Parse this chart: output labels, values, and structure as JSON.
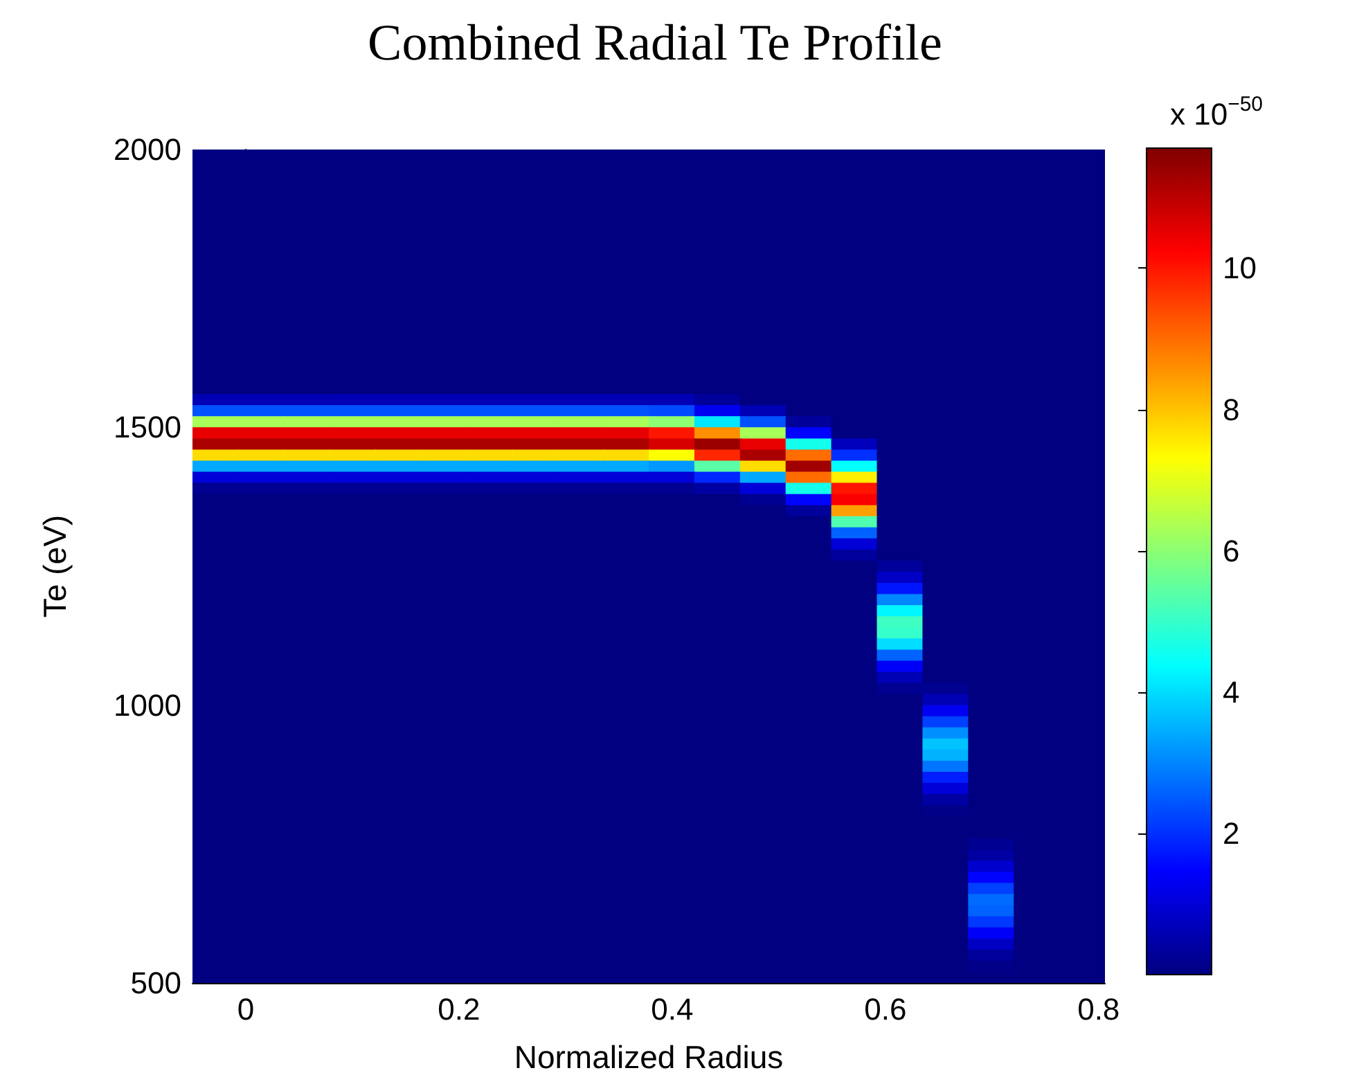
{
  "chart_data": {
    "type": "heatmap",
    "title": "Combined Radial Te Profile",
    "xlabel": "Normalized Radius",
    "ylabel": "Te (eV)",
    "clabel": "x 10$^{−50}$",
    "xlim": [
      -0.05,
      0.806
    ],
    "xticks": [
      0,
      0.2,
      0.4,
      0.6,
      0.8
    ],
    "ylim": [
      500,
      2000
    ],
    "yticks": [
      500,
      1000,
      1500,
      2000
    ],
    "clim": [
      0,
      11.7
    ],
    "cticks": [
      2,
      4,
      6,
      8,
      10
    ],
    "x": [
      -0.0286,
      0.0142,
      0.057,
      0.0998,
      0.1426,
      0.1854,
      0.2282,
      0.271,
      0.3138,
      0.3566,
      0.3994,
      0.4422,
      0.485,
      0.5278,
      0.5706,
      0.6134,
      0.6562,
      0.699,
      0.7418,
      0.7846
    ],
    "y": [
      1990,
      1970,
      1950,
      1930,
      1910,
      1890,
      1870,
      1850,
      1830,
      1810,
      1790,
      1770,
      1750,
      1730,
      1710,
      1690,
      1670,
      1650,
      1630,
      1610,
      1590,
      1570,
      1550,
      1530,
      1510,
      1490,
      1470,
      1450,
      1430,
      1410,
      1390,
      1370,
      1350,
      1330,
      1310,
      1290,
      1270,
      1250,
      1230,
      1210,
      1190,
      1170,
      1150,
      1130,
      1110,
      1090,
      1070,
      1050,
      1030,
      1010,
      990,
      970,
      950,
      930,
      910,
      890,
      870,
      850,
      830,
      810,
      790,
      770,
      750,
      730,
      710,
      690,
      670,
      650,
      630,
      610,
      590,
      570,
      550,
      530,
      510
    ],
    "cells": [
      [
        0,
        0,
        0,
        0,
        0,
        0,
        0,
        0,
        0,
        0,
        0,
        0,
        0,
        0,
        0,
        0,
        0,
        0,
        0,
        0
      ],
      [
        0,
        0,
        0,
        0,
        0,
        0,
        0,
        0,
        0,
        0,
        0,
        0,
        0,
        0,
        0,
        0,
        0,
        0,
        0,
        0
      ],
      [
        0,
        0,
        0,
        0,
        0,
        0,
        0,
        0,
        0,
        0,
        0,
        0,
        0,
        0,
        0,
        0,
        0,
        0,
        0,
        0
      ],
      [
        0,
        0,
        0,
        0,
        0,
        0,
        0,
        0,
        0,
        0,
        0,
        0,
        0,
        0,
        0,
        0,
        0,
        0,
        0,
        0
      ],
      [
        0,
        0,
        0,
        0,
        0,
        0,
        0,
        0,
        0,
        0,
        0,
        0,
        0,
        0,
        0,
        0,
        0,
        0,
        0,
        0
      ],
      [
        0,
        0,
        0,
        0,
        0,
        0,
        0,
        0,
        0,
        0,
        0,
        0,
        0,
        0,
        0,
        0,
        0,
        0,
        0,
        0
      ],
      [
        0,
        0,
        0,
        0,
        0,
        0,
        0,
        0,
        0,
        0,
        0,
        0,
        0,
        0,
        0,
        0,
        0,
        0,
        0,
        0
      ],
      [
        0,
        0,
        0,
        0,
        0,
        0,
        0,
        0,
        0,
        0,
        0,
        0,
        0,
        0,
        0,
        0,
        0,
        0,
        0,
        0
      ],
      [
        0,
        0,
        0,
        0,
        0,
        0,
        0,
        0,
        0,
        0,
        0,
        0,
        0,
        0,
        0,
        0,
        0,
        0,
        0,
        0
      ],
      [
        0,
        0,
        0,
        0,
        0,
        0,
        0,
        0,
        0,
        0,
        0,
        0,
        0,
        0,
        0,
        0,
        0,
        0,
        0,
        0
      ],
      [
        0,
        0,
        0,
        0,
        0,
        0,
        0,
        0,
        0,
        0,
        0,
        0,
        0,
        0,
        0,
        0,
        0,
        0,
        0,
        0
      ],
      [
        0,
        0,
        0,
        0,
        0,
        0,
        0,
        0,
        0,
        0,
        0,
        0,
        0,
        0,
        0,
        0,
        0,
        0,
        0,
        0
      ],
      [
        0,
        0,
        0,
        0,
        0,
        0,
        0,
        0,
        0,
        0,
        0,
        0,
        0,
        0,
        0,
        0,
        0,
        0,
        0,
        0
      ],
      [
        0,
        0,
        0,
        0,
        0,
        0,
        0,
        0,
        0,
        0,
        0,
        0,
        0,
        0,
        0,
        0,
        0,
        0,
        0,
        0
      ],
      [
        0,
        0,
        0,
        0,
        0,
        0,
        0,
        0,
        0,
        0,
        0,
        0,
        0,
        0,
        0,
        0,
        0,
        0,
        0,
        0
      ],
      [
        0,
        0,
        0,
        0,
        0,
        0,
        0,
        0,
        0,
        0,
        0,
        0,
        0,
        0,
        0,
        0,
        0,
        0,
        0,
        0
      ],
      [
        0,
        0,
        0,
        0,
        0,
        0,
        0,
        0,
        0,
        0,
        0,
        0,
        0,
        0,
        0,
        0,
        0,
        0,
        0,
        0
      ],
      [
        0,
        0,
        0,
        0,
        0,
        0,
        0,
        0,
        0,
        0,
        0,
        0,
        0,
        0,
        0,
        0,
        0,
        0,
        0,
        0
      ],
      [
        0,
        0,
        0,
        0,
        0,
        0,
        0,
        0,
        0,
        0,
        0,
        0,
        0,
        0,
        0,
        0,
        0,
        0,
        0,
        0
      ],
      [
        0,
        0,
        0,
        0,
        0,
        0,
        0,
        0,
        0,
        0,
        0,
        0,
        0,
        0,
        0,
        0,
        0,
        0,
        0,
        0
      ],
      [
        0,
        0,
        0,
        0,
        0,
        0,
        0,
        0,
        0,
        0,
        0,
        0,
        0,
        0,
        0,
        0,
        0,
        0,
        0,
        0
      ],
      [
        0,
        0,
        0,
        0,
        0,
        0,
        0,
        0,
        0,
        0,
        0,
        0,
        0,
        0,
        0,
        0,
        0,
        0,
        0,
        0
      ],
      [
        0.6,
        0.6,
        0.6,
        0.6,
        0.6,
        0.6,
        0.6,
        0.6,
        0.6,
        0.6,
        0.6,
        0.3,
        0,
        0,
        0,
        0,
        0,
        0,
        0,
        0
      ],
      [
        2.4,
        2.4,
        2.4,
        2.4,
        2.4,
        2.4,
        2.4,
        2.4,
        2.4,
        2.4,
        2.3,
        1.3,
        0.6,
        0,
        0,
        0,
        0,
        0,
        0,
        0
      ],
      [
        6.3,
        6.3,
        6.3,
        6.3,
        6.3,
        6.3,
        6.3,
        6.3,
        6.3,
        6.3,
        6.0,
        4.1,
        2.4,
        0.3,
        0,
        0,
        0,
        0,
        0,
        0
      ],
      [
        10.5,
        10.5,
        10.5,
        10.5,
        10.5,
        10.5,
        10.5,
        10.5,
        10.5,
        10.5,
        10.0,
        8.6,
        6.3,
        1.5,
        0,
        0,
        0,
        0,
        0,
        0
      ],
      [
        11.2,
        11.2,
        11.2,
        11.2,
        11.2,
        11.2,
        11.2,
        11.2,
        11.2,
        11.2,
        10.7,
        11.4,
        10.5,
        4.6,
        0.7,
        0,
        0,
        0,
        0,
        0
      ],
      [
        7.7,
        7.7,
        7.7,
        7.7,
        7.7,
        7.7,
        7.7,
        7.7,
        7.7,
        7.7,
        7.3,
        9.8,
        11.2,
        9.0,
        2.0,
        0,
        0,
        0,
        0,
        0
      ],
      [
        3.4,
        3.4,
        3.4,
        3.4,
        3.4,
        3.4,
        3.4,
        3.4,
        3.4,
        3.4,
        3.2,
        5.4,
        7.7,
        11.3,
        4.4,
        0,
        0,
        0,
        0,
        0
      ],
      [
        1.0,
        1.0,
        1.0,
        1.0,
        1.0,
        1.0,
        1.0,
        1.0,
        1.0,
        1.0,
        1.0,
        1.9,
        3.4,
        9.0,
        7.5,
        0,
        0,
        0,
        0,
        0
      ],
      [
        0.2,
        0.2,
        0.2,
        0.2,
        0.2,
        0.2,
        0.2,
        0.2,
        0.2,
        0.2,
        0.2,
        0.4,
        1.0,
        4.6,
        10.0,
        0,
        0,
        0,
        0,
        0
      ],
      [
        0,
        0,
        0,
        0,
        0,
        0,
        0,
        0,
        0,
        0,
        0,
        0,
        0.2,
        1.5,
        10.3,
        0,
        0,
        0,
        0,
        0
      ],
      [
        0,
        0,
        0,
        0,
        0,
        0,
        0,
        0,
        0,
        0,
        0,
        0,
        0,
        0.3,
        8.4,
        0,
        0,
        0,
        0,
        0
      ],
      [
        0,
        0,
        0,
        0,
        0,
        0,
        0,
        0,
        0,
        0,
        0,
        0,
        0,
        0,
        5.3,
        0,
        0,
        0,
        0,
        0
      ],
      [
        0,
        0,
        0,
        0,
        0,
        0,
        0,
        0,
        0,
        0,
        0,
        0,
        0,
        0,
        2.6,
        0,
        0,
        0,
        0,
        0
      ],
      [
        0,
        0,
        0,
        0,
        0,
        0,
        0,
        0,
        0,
        0,
        0,
        0,
        0,
        0,
        1.0,
        0,
        0,
        0,
        0,
        0
      ],
      [
        0,
        0,
        0,
        0,
        0,
        0,
        0,
        0,
        0,
        0,
        0,
        0,
        0,
        0,
        0.3,
        0,
        0,
        0,
        0,
        0
      ],
      [
        0,
        0,
        0,
        0,
        0,
        0,
        0,
        0,
        0,
        0,
        0,
        0,
        0,
        0,
        0,
        0.3,
        0,
        0,
        0,
        0
      ],
      [
        0,
        0,
        0,
        0,
        0,
        0,
        0,
        0,
        0,
        0,
        0,
        0,
        0,
        0,
        0,
        0.8,
        0,
        0,
        0,
        0
      ],
      [
        0,
        0,
        0,
        0,
        0,
        0,
        0,
        0,
        0,
        0,
        0,
        0,
        0,
        0,
        0,
        1.7,
        0,
        0,
        0,
        0
      ],
      [
        0,
        0,
        0,
        0,
        0,
        0,
        0,
        0,
        0,
        0,
        0,
        0,
        0,
        0,
        0,
        3.0,
        0,
        0,
        0,
        0
      ],
      [
        0,
        0,
        0,
        0,
        0,
        0,
        0,
        0,
        0,
        0,
        0,
        0,
        0,
        0,
        0,
        4.3,
        0,
        0,
        0,
        0
      ],
      [
        0,
        0,
        0,
        0,
        0,
        0,
        0,
        0,
        0,
        0,
        0,
        0,
        0,
        0,
        0,
        5.1,
        0,
        0,
        0,
        0
      ],
      [
        0,
        0,
        0,
        0,
        0,
        0,
        0,
        0,
        0,
        0,
        0,
        0,
        0,
        0,
        0,
        5.0,
        0,
        0,
        0,
        0
      ],
      [
        0,
        0,
        0,
        0,
        0,
        0,
        0,
        0,
        0,
        0,
        0,
        0,
        0,
        0,
        0,
        4.0,
        0,
        0,
        0,
        0
      ],
      [
        0,
        0,
        0,
        0,
        0,
        0,
        0,
        0,
        0,
        0,
        0,
        0,
        0,
        0,
        0,
        2.6,
        0,
        0,
        0,
        0
      ],
      [
        0,
        0,
        0,
        0,
        0,
        0,
        0,
        0,
        0,
        0,
        0,
        0,
        0,
        0,
        0,
        1.4,
        0,
        0,
        0,
        0
      ],
      [
        0,
        0,
        0,
        0,
        0,
        0,
        0,
        0,
        0,
        0,
        0,
        0,
        0,
        0,
        0,
        0.6,
        0,
        0,
        0,
        0
      ],
      [
        0,
        0,
        0,
        0,
        0,
        0,
        0,
        0,
        0,
        0,
        0,
        0,
        0,
        0,
        0,
        0.2,
        0.2,
        0,
        0,
        0
      ],
      [
        0,
        0,
        0,
        0,
        0,
        0,
        0,
        0,
        0,
        0,
        0,
        0,
        0,
        0,
        0,
        0,
        0.6,
        0,
        0,
        0
      ],
      [
        0,
        0,
        0,
        0,
        0,
        0,
        0,
        0,
        0,
        0,
        0,
        0,
        0,
        0,
        0,
        0,
        1.3,
        0,
        0,
        0
      ],
      [
        0,
        0,
        0,
        0,
        0,
        0,
        0,
        0,
        0,
        0,
        0,
        0,
        0,
        0,
        0,
        0,
        2.2,
        0,
        0,
        0
      ],
      [
        0,
        0,
        0,
        0,
        0,
        0,
        0,
        0,
        0,
        0,
        0,
        0,
        0,
        0,
        0,
        0,
        3.1,
        0,
        0,
        0
      ],
      [
        0,
        0,
        0,
        0,
        0,
        0,
        0,
        0,
        0,
        0,
        0,
        0,
        0,
        0,
        0,
        0,
        3.7,
        0,
        0,
        0
      ],
      [
        0,
        0,
        0,
        0,
        0,
        0,
        0,
        0,
        0,
        0,
        0,
        0,
        0,
        0,
        0,
        0,
        3.5,
        0,
        0,
        0
      ],
      [
        0,
        0,
        0,
        0,
        0,
        0,
        0,
        0,
        0,
        0,
        0,
        0,
        0,
        0,
        0,
        0,
        2.8,
        0,
        0,
        0
      ],
      [
        0,
        0,
        0,
        0,
        0,
        0,
        0,
        0,
        0,
        0,
        0,
        0,
        0,
        0,
        0,
        0,
        1.8,
        0,
        0,
        0
      ],
      [
        0,
        0,
        0,
        0,
        0,
        0,
        0,
        0,
        0,
        0,
        0,
        0,
        0,
        0,
        0,
        0,
        1.0,
        0,
        0,
        0
      ],
      [
        0,
        0,
        0,
        0,
        0,
        0,
        0,
        0,
        0,
        0,
        0,
        0,
        0,
        0,
        0,
        0,
        0.4,
        0,
        0,
        0
      ],
      [
        0,
        0,
        0,
        0,
        0,
        0,
        0,
        0,
        0,
        0,
        0,
        0,
        0,
        0,
        0,
        0,
        0.1,
        0,
        0,
        0
      ],
      [
        0,
        0,
        0,
        0,
        0,
        0,
        0,
        0,
        0,
        0,
        0,
        0,
        0,
        0,
        0,
        0,
        0,
        0,
        0,
        0
      ],
      [
        0,
        0,
        0,
        0,
        0,
        0,
        0,
        0,
        0,
        0,
        0,
        0,
        0,
        0,
        0,
        0,
        0,
        0,
        0,
        0
      ],
      [
        0,
        0,
        0,
        0,
        0,
        0,
        0,
        0,
        0,
        0,
        0,
        0,
        0,
        0,
        0,
        0,
        0,
        0.2,
        0,
        0
      ],
      [
        0,
        0,
        0,
        0,
        0,
        0,
        0,
        0,
        0,
        0,
        0,
        0,
        0,
        0,
        0,
        0,
        0,
        0.4,
        0,
        0
      ],
      [
        0,
        0,
        0,
        0,
        0,
        0,
        0,
        0,
        0,
        0,
        0,
        0,
        0,
        0,
        0,
        0,
        0,
        0.9,
        0,
        0
      ],
      [
        0,
        0,
        0,
        0,
        0,
        0,
        0,
        0,
        0,
        0,
        0,
        0,
        0,
        0,
        0,
        0,
        0,
        1.5,
        0,
        0
      ],
      [
        0,
        0,
        0,
        0,
        0,
        0,
        0,
        0,
        0,
        0,
        0,
        0,
        0,
        0,
        0,
        0,
        0,
        2.2,
        0,
        0
      ],
      [
        0,
        0,
        0,
        0,
        0,
        0,
        0,
        0,
        0,
        0,
        0,
        0,
        0,
        0,
        0,
        0,
        0,
        2.7,
        0,
        0
      ],
      [
        0,
        0,
        0,
        0,
        0,
        0,
        0,
        0,
        0,
        0,
        0,
        0,
        0,
        0,
        0,
        0,
        0,
        2.6,
        0,
        0
      ],
      [
        0,
        0,
        0,
        0,
        0,
        0,
        0,
        0,
        0,
        0,
        0,
        0,
        0,
        0,
        0,
        0,
        0,
        2.1,
        0,
        0
      ],
      [
        0,
        0,
        0,
        0,
        0,
        0,
        0,
        0,
        0,
        0,
        0,
        0,
        0,
        0,
        0,
        0,
        0,
        1.4,
        0,
        0
      ],
      [
        0,
        0,
        0,
        0,
        0,
        0,
        0,
        0,
        0,
        0,
        0,
        0,
        0,
        0,
        0,
        0,
        0,
        0.8,
        0,
        0
      ],
      [
        0,
        0,
        0,
        0,
        0,
        0,
        0,
        0,
        0,
        0,
        0,
        0,
        0,
        0,
        0,
        0,
        0,
        0.3,
        0,
        0
      ],
      [
        0,
        0,
        0,
        0,
        0,
        0,
        0,
        0,
        0,
        0,
        0,
        0,
        0,
        0,
        0,
        0,
        0,
        0.1,
        0,
        0
      ],
      [
        0,
        0,
        0,
        0,
        0,
        0,
        0,
        0,
        0,
        0,
        0,
        0,
        0,
        0,
        0,
        0,
        0,
        0,
        0,
        0
      ]
    ]
  }
}
